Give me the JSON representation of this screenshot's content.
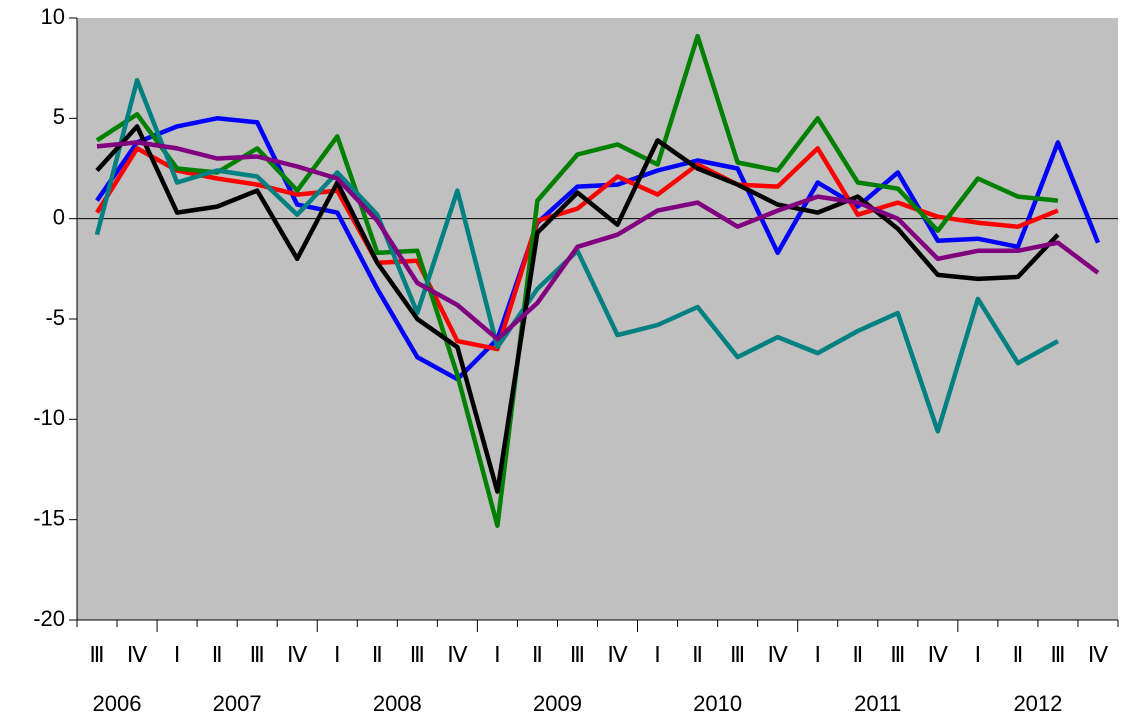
{
  "chart_data": {
    "type": "line",
    "categories": [
      "Ⅲ",
      "Ⅳ",
      "Ⅰ",
      "Ⅱ",
      "Ⅲ",
      "Ⅳ",
      "Ⅰ",
      "Ⅱ",
      "Ⅲ",
      "Ⅳ",
      "Ⅰ",
      "Ⅱ",
      "Ⅲ",
      "Ⅳ",
      "Ⅰ",
      "Ⅱ",
      "Ⅲ",
      "Ⅳ",
      "Ⅰ",
      "Ⅱ",
      "Ⅲ",
      "Ⅳ",
      "Ⅰ",
      "Ⅱ",
      "Ⅲ",
      "Ⅳ"
    ],
    "years": [
      "2006",
      "2007",
      "2008",
      "2009",
      "2010",
      "2011",
      "2012"
    ],
    "series": [
      {
        "color": "#0000ff",
        "values": [
          0.9,
          3.8,
          4.6,
          5.0,
          4.8,
          0.7,
          0.3,
          -3.5,
          -6.9,
          -8.0,
          -6.0,
          -0.2,
          1.6,
          1.7,
          2.4,
          2.9,
          2.5,
          -1.7,
          1.8,
          0.6,
          2.3,
          -1.1,
          -1.0,
          -1.4,
          3.8,
          -1.2
        ]
      },
      {
        "color": "#ff0000",
        "values": [
          0.3,
          3.5,
          2.4,
          2.0,
          1.7,
          1.2,
          1.4,
          -2.2,
          -2.1,
          -6.1,
          -6.5,
          -0.1,
          0.5,
          2.1,
          1.2,
          2.7,
          1.7,
          1.6,
          3.5,
          0.2,
          0.8,
          0.1,
          -0.2,
          -0.4,
          0.4,
          null
        ]
      },
      {
        "color": "#008000",
        "values": [
          3.9,
          5.2,
          2.5,
          2.3,
          3.5,
          1.4,
          4.1,
          -1.7,
          -1.6,
          -7.8,
          -15.3,
          0.9,
          3.2,
          3.7,
          2.7,
          9.1,
          2.8,
          2.4,
          5.0,
          1.8,
          1.5,
          -0.6,
          2.0,
          1.1,
          0.9,
          null
        ]
      },
      {
        "color": "#008080",
        "values": [
          -0.8,
          6.9,
          1.8,
          2.4,
          2.1,
          0.2,
          2.3,
          0.2,
          -4.7,
          1.4,
          -6.4,
          -3.5,
          -1.6,
          -5.8,
          -5.3,
          -4.4,
          -6.9,
          -5.9,
          -6.7,
          -5.6,
          -4.7,
          -10.6,
          -4.0,
          -7.2,
          -6.1,
          null
        ]
      },
      {
        "color": "#000000",
        "values": [
          2.4,
          4.6,
          0.3,
          0.6,
          1.4,
          -2.0,
          1.8,
          -2.2,
          -5.0,
          -6.4,
          -13.6,
          -0.7,
          1.3,
          -0.3,
          3.9,
          2.5,
          1.7,
          0.7,
          0.3,
          1.1,
          -0.5,
          -2.8,
          -3.0,
          -2.9,
          -0.8,
          null
        ]
      },
      {
        "color": "#800080",
        "values": [
          3.6,
          3.8,
          3.5,
          3.0,
          3.1,
          2.6,
          2.0,
          -0.1,
          -3.2,
          -4.3,
          -6.0,
          -4.2,
          -1.4,
          -0.8,
          0.4,
          0.8,
          -0.4,
          0.4,
          1.1,
          0.8,
          0.0,
          -2.0,
          -1.6,
          -1.6,
          -1.2,
          -2.7
        ]
      }
    ],
    "ylim": [
      -20,
      10
    ],
    "yticks": [
      -20,
      -15,
      -10,
      -5,
      0,
      5,
      10
    ],
    "zero_line": true,
    "background": "#c0c0c0"
  }
}
